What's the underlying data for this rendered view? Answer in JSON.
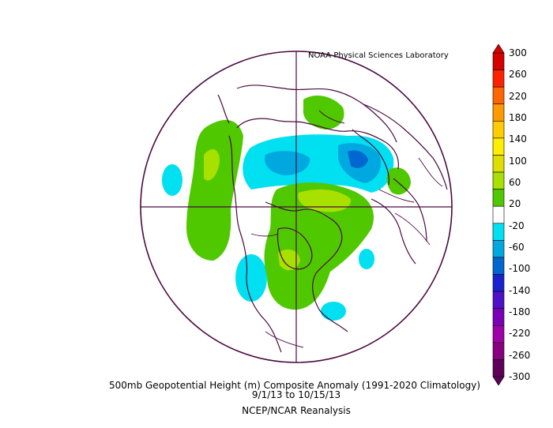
{
  "credit": "NOAA Physical Sciences Laboratory",
  "caption": {
    "line1": "500mb Geopotential Height (m) Composite Anomaly (1991-2020 Climatology)",
    "line2": "9/1/13  to 10/15/13",
    "line3": "NCEP/NCAR Reanalysis"
  },
  "colorbar": {
    "labels": [
      "300",
      "260",
      "220",
      "180",
      "140",
      "100",
      "60",
      "20",
      "-20",
      "-60",
      "-100",
      "-140",
      "-180",
      "-220",
      "-260",
      "-300"
    ],
    "colors": [
      "#d40000",
      "#ff2200",
      "#ff6600",
      "#ff9900",
      "#ffcc00",
      "#ffee00",
      "#dede00",
      "#a8e000",
      "#50c800",
      "#ffffff",
      "#00e0f0",
      "#00a8e0",
      "#0066d0",
      "#1a22d0",
      "#5010c8",
      "#7a00b8",
      "#a000a8",
      "#880080",
      "#60005a"
    ]
  },
  "map": {
    "projection": "north-polar-stereographic",
    "outline_color": "#4a0a40"
  }
}
